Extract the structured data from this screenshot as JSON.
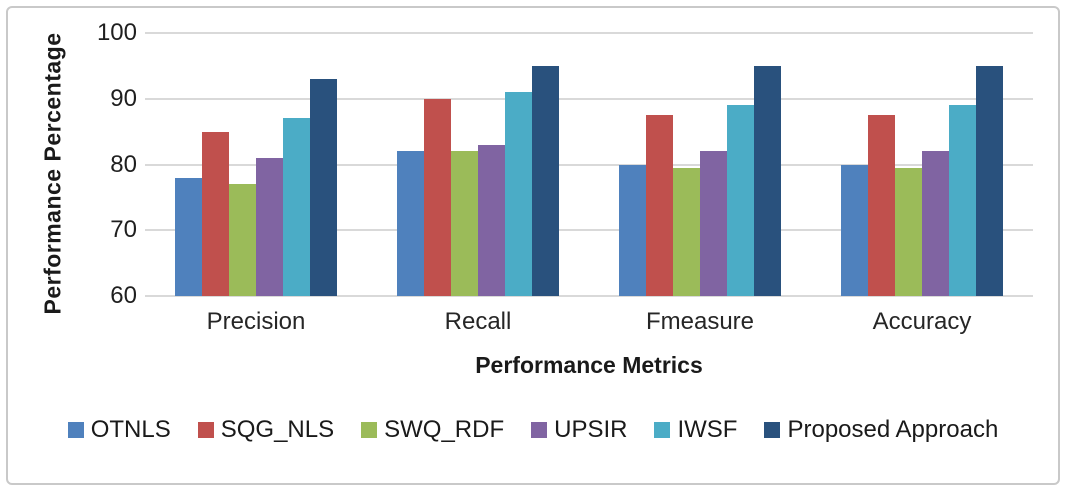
{
  "chart_data": {
    "type": "bar",
    "title": "",
    "xlabel": "Performance Metrics",
    "ylabel": "Performance Percentage",
    "categories": [
      "Precision",
      "Recall",
      "Fmeasure",
      "Accuracy"
    ],
    "series": [
      {
        "name": "OTNLS",
        "color": "#4F81BD",
        "values": [
          78,
          82,
          80,
          80
        ]
      },
      {
        "name": "SQG_NLS",
        "color": "#C0504D",
        "values": [
          85,
          90,
          87.5,
          87.5
        ]
      },
      {
        "name": "SWQ_RDF",
        "color": "#9BBB59",
        "values": [
          77,
          82,
          79.5,
          79.5
        ]
      },
      {
        "name": "UPSIR",
        "color": "#8064A2",
        "values": [
          81,
          83,
          82,
          82
        ]
      },
      {
        "name": "IWSF",
        "color": "#4BACC6",
        "values": [
          87,
          91,
          89,
          89
        ]
      },
      {
        "name": "Proposed Approach",
        "color": "#29517D",
        "values": [
          93,
          95,
          95,
          95
        ]
      }
    ],
    "ylim": [
      60,
      100
    ],
    "yticks": [
      60,
      70,
      80,
      90,
      100
    ],
    "grid": true,
    "legend_position": "bottom",
    "gridline_color": "#d9d9d9"
  }
}
